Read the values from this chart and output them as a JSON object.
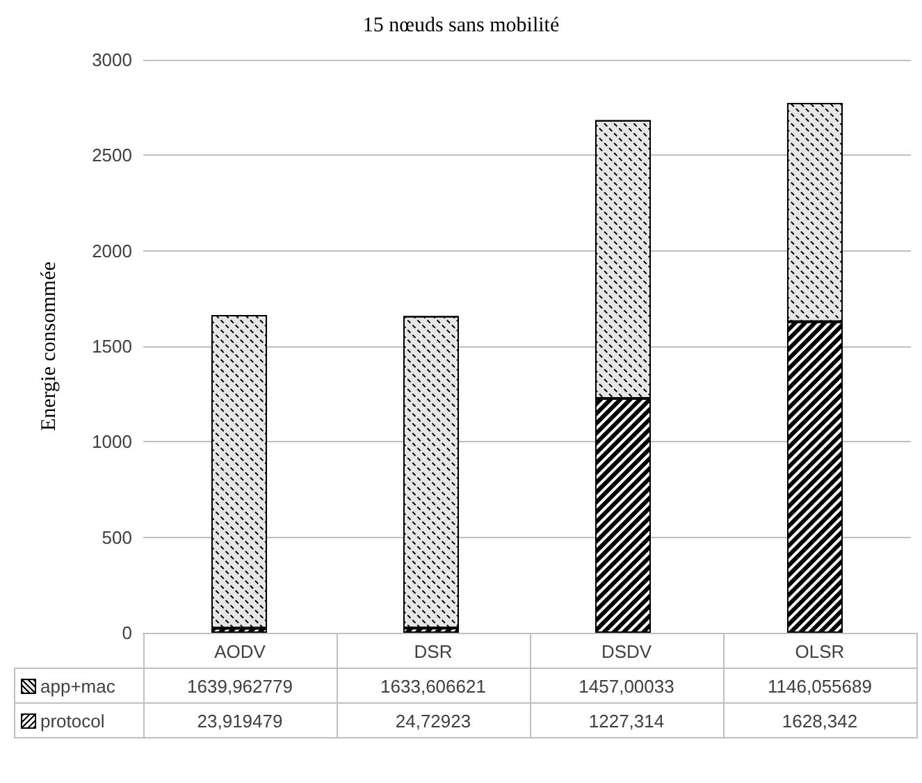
{
  "chart_data": {
    "type": "bar",
    "title": "15 nœuds sans mobilité",
    "ylabel": "Energie consommée",
    "categories": [
      "AODV",
      "DSR",
      "DSDV",
      "OLSR"
    ],
    "stacked": true,
    "series": [
      {
        "name": "protocol",
        "color": "#000000",
        "values": [
          23.919479,
          24.72923,
          1227.314,
          1628.342
        ],
        "value_labels": [
          "23,919479",
          "24,72923",
          "1227,314",
          "1628,342"
        ]
      },
      {
        "name": "app+mac",
        "color": "#e6e6e6",
        "values": [
          1639.962779,
          1633.606621,
          1457.00033,
          1146.055689
        ],
        "value_labels": [
          "1639,962779",
          "1633,606621",
          "1457,00033",
          "1146,055689"
        ]
      }
    ],
    "ylim": [
      0,
      3000
    ],
    "yticks": [
      0,
      500,
      1000,
      1500,
      2000,
      2500,
      3000
    ],
    "grid": "y",
    "legend": "bottom"
  }
}
